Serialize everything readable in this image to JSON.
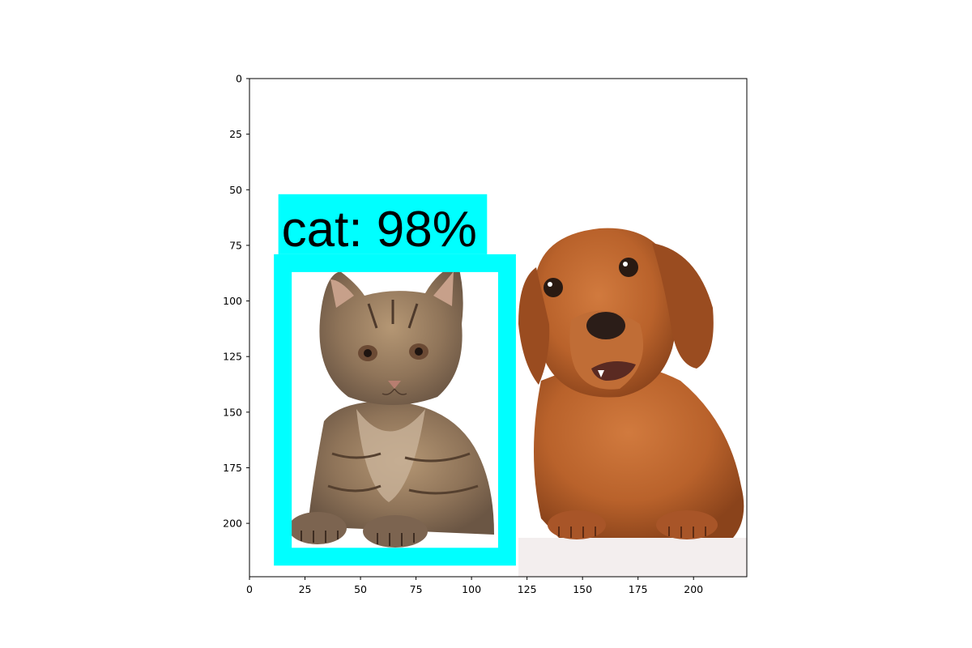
{
  "detection": {
    "label_text": "cat: 98%",
    "box_color": "#00ffff",
    "box_data": {
      "xmin": 11,
      "xmax": 120,
      "ymin": 79,
      "ymax": 219
    },
    "label_bg_data": {
      "xmin": 13,
      "xmax": 107,
      "ymin": 52,
      "ymax": 79
    }
  },
  "photo": {
    "subjects": [
      "kitten",
      "dachshund-dog"
    ],
    "background_color": "#ffffff"
  },
  "chart_data": {
    "type": "image-with-axes",
    "xlim": [
      0,
      224
    ],
    "ylim": [
      224,
      0
    ],
    "x_ticks": [
      {
        "value": 0,
        "label": "0"
      },
      {
        "value": 25,
        "label": "25"
      },
      {
        "value": 50,
        "label": "50"
      },
      {
        "value": 75,
        "label": "75"
      },
      {
        "value": 100,
        "label": "100"
      },
      {
        "value": 125,
        "label": "125"
      },
      {
        "value": 150,
        "label": "150"
      },
      {
        "value": 175,
        "label": "175"
      },
      {
        "value": 200,
        "label": "200"
      }
    ],
    "y_ticks": [
      {
        "value": 0,
        "label": "0"
      },
      {
        "value": 25,
        "label": "25"
      },
      {
        "value": 50,
        "label": "50"
      },
      {
        "value": 75,
        "label": "75"
      },
      {
        "value": 100,
        "label": "100"
      },
      {
        "value": 125,
        "label": "125"
      },
      {
        "value": 150,
        "label": "150"
      },
      {
        "value": 175,
        "label": "175"
      },
      {
        "value": 200,
        "label": "200"
      }
    ]
  }
}
